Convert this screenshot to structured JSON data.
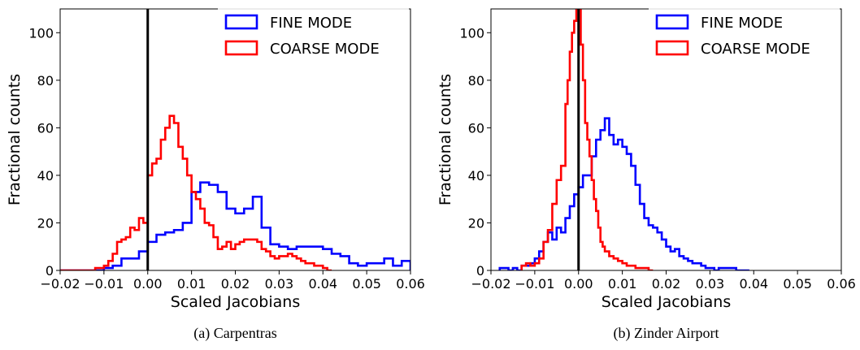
{
  "chart_data": [
    {
      "type": "histogram",
      "caption": "(a) Carpentras",
      "xlabel": "Scaled Jacobians",
      "ylabel": "Fractional counts",
      "xlim": [
        -0.02,
        0.06
      ],
      "ylim": [
        0,
        110
      ],
      "xticks": [
        -0.02,
        -0.01,
        0.0,
        0.01,
        0.02,
        0.03,
        0.04,
        0.05,
        0.06
      ],
      "xtick_labels": [
        "−0.02",
        "−0.01",
        "0.00",
        "0.01",
        "0.02",
        "0.03",
        "0.04",
        "0.05",
        "0.06"
      ],
      "yticks": [
        0,
        20,
        40,
        60,
        80,
        100
      ],
      "ytick_labels": [
        "0",
        "20",
        "40",
        "60",
        "80",
        "100"
      ],
      "vline_x": 0.0,
      "legend": {
        "position": "top-right"
      },
      "series": [
        {
          "name": "FINE MODE",
          "color": "#0000ff",
          "x": [
            -0.02,
            -0.01,
            -0.008,
            -0.006,
            -0.004,
            -0.002,
            0.0,
            0.002,
            0.004,
            0.006,
            0.008,
            0.01,
            0.012,
            0.014,
            0.016,
            0.018,
            0.02,
            0.022,
            0.024,
            0.026,
            0.028,
            0.03,
            0.032,
            0.034,
            0.036,
            0.038,
            0.04,
            0.042,
            0.044,
            0.046,
            0.048,
            0.05,
            0.052,
            0.054,
            0.056,
            0.058,
            0.06
          ],
          "y": [
            0,
            1,
            2,
            5,
            5,
            8,
            12,
            15,
            16,
            17,
            20,
            33,
            37,
            36,
            33,
            26,
            24,
            26,
            31,
            18,
            11,
            10,
            9,
            10,
            10,
            10,
            9,
            7,
            6,
            3,
            2,
            3,
            3,
            5,
            2,
            4,
            0
          ]
        },
        {
          "name": "COARSE MODE",
          "color": "#ff0000",
          "x": [
            -0.02,
            -0.012,
            -0.011,
            -0.01,
            -0.009,
            -0.008,
            -0.007,
            -0.006,
            -0.005,
            -0.004,
            -0.003,
            -0.002,
            -0.001,
            0.0,
            0.001,
            0.002,
            0.003,
            0.004,
            0.005,
            0.006,
            0.007,
            0.008,
            0.009,
            0.01,
            0.011,
            0.012,
            0.013,
            0.014,
            0.015,
            0.016,
            0.017,
            0.018,
            0.019,
            0.02,
            0.021,
            0.022,
            0.023,
            0.024,
            0.025,
            0.026,
            0.027,
            0.028,
            0.029,
            0.03,
            0.031,
            0.032,
            0.033,
            0.034,
            0.035,
            0.036,
            0.037,
            0.038,
            0.039,
            0.04,
            0.041,
            0.042
          ],
          "y": [
            0,
            1,
            1,
            2,
            4,
            7,
            12,
            13,
            14,
            18,
            17,
            22,
            20,
            40,
            45,
            47,
            55,
            60,
            65,
            62,
            52,
            47,
            40,
            33,
            30,
            26,
            20,
            19,
            14,
            9,
            10,
            12,
            9,
            11,
            12,
            13,
            13,
            13,
            12,
            9,
            8,
            6,
            5,
            6,
            6,
            7,
            6,
            5,
            4,
            3,
            3,
            2,
            2,
            1,
            0,
            0
          ]
        }
      ]
    },
    {
      "type": "histogram",
      "caption": "(b) Zinder Airport",
      "xlabel": "Scaled Jacobians",
      "ylabel": "Fractional counts",
      "xlim": [
        -0.02,
        0.06
      ],
      "ylim": [
        0,
        110
      ],
      "xticks": [
        -0.02,
        -0.01,
        0.0,
        0.01,
        0.02,
        0.03,
        0.04,
        0.05,
        0.06
      ],
      "xtick_labels": [
        "−0.02",
        "−0.01",
        "0.00",
        "0.01",
        "0.02",
        "0.03",
        "0.04",
        "0.05",
        "0.06"
      ],
      "yticks": [
        0,
        20,
        40,
        60,
        80,
        100
      ],
      "ytick_labels": [
        "0",
        "20",
        "40",
        "60",
        "80",
        "100"
      ],
      "vline_x": 0.0,
      "legend": {
        "position": "top-right"
      },
      "series": [
        {
          "name": "FINE MODE",
          "color": "#0000ff",
          "x": [
            -0.018,
            -0.016,
            -0.015,
            -0.014,
            -0.013,
            -0.012,
            -0.011,
            -0.01,
            -0.009,
            -0.008,
            -0.007,
            -0.006,
            -0.005,
            -0.004,
            -0.003,
            -0.002,
            -0.001,
            0.0,
            0.001,
            0.002,
            0.003,
            0.004,
            0.005,
            0.006,
            0.007,
            0.008,
            0.009,
            0.01,
            0.011,
            0.012,
            0.013,
            0.014,
            0.015,
            0.016,
            0.017,
            0.018,
            0.019,
            0.02,
            0.021,
            0.022,
            0.023,
            0.024,
            0.025,
            0.026,
            0.027,
            0.028,
            0.029,
            0.03,
            0.031,
            0.032,
            0.034,
            0.036,
            0.038,
            0.039
          ],
          "y": [
            1,
            0,
            1,
            0,
            2,
            2,
            3,
            5,
            8,
            12,
            16,
            13,
            18,
            16,
            22,
            27,
            32,
            35,
            40,
            40,
            48,
            55,
            59,
            64,
            57,
            53,
            55,
            52,
            49,
            44,
            36,
            28,
            22,
            19,
            18,
            16,
            13,
            10,
            8,
            9,
            6,
            5,
            4,
            3,
            3,
            2,
            1,
            1,
            0,
            1,
            1,
            0,
            0,
            0
          ]
        },
        {
          "name": "COARSE MODE",
          "color": "#ff0000",
          "x": [
            -0.013,
            -0.012,
            -0.011,
            -0.01,
            -0.009,
            -0.008,
            -0.007,
            -0.006,
            -0.005,
            -0.004,
            -0.003,
            -0.0025,
            -0.002,
            -0.0015,
            -0.001,
            -0.0005,
            0.0,
            0.0005,
            0.001,
            0.0015,
            0.002,
            0.0025,
            0.003,
            0.0035,
            0.004,
            0.0045,
            0.005,
            0.0055,
            0.006,
            0.007,
            0.008,
            0.009,
            0.01,
            0.011,
            0.012,
            0.013,
            0.014,
            0.015,
            0.016,
            0.017
          ],
          "y": [
            2,
            3,
            2,
            3,
            5,
            12,
            17,
            28,
            38,
            44,
            70,
            80,
            92,
            100,
            105,
            110,
            110,
            95,
            80,
            62,
            55,
            48,
            38,
            30,
            25,
            18,
            12,
            10,
            8,
            6,
            5,
            4,
            3,
            2,
            2,
            1,
            1,
            1,
            0,
            0
          ]
        }
      ]
    }
  ]
}
